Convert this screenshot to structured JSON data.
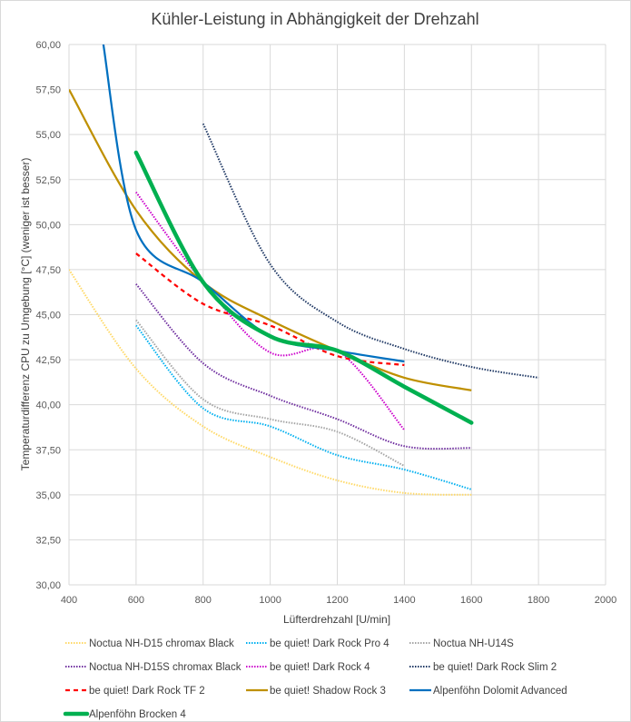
{
  "chart_data": {
    "type": "line",
    "title": "Kühler-Leistung in Abhängigkeit der Drehzahl",
    "xlabel": "Lüfterdrehzahl [U/min]",
    "ylabel": "Temperaturdifferenz CPU zu Umgebung [°C] (weniger ist besser)",
    "xlim": [
      400,
      2000
    ],
    "ylim": [
      30,
      60
    ],
    "x_ticks": [
      400,
      600,
      800,
      1000,
      1200,
      1400,
      1600,
      1800,
      2000
    ],
    "x_tick_labels": [
      "400",
      "600",
      "800",
      "1000",
      "1200",
      "1400",
      "1600",
      "1800",
      "2000"
    ],
    "y_ticks": [
      30,
      32.5,
      35,
      37.5,
      40,
      42.5,
      45,
      47.5,
      50,
      52.5,
      55,
      57.5,
      60
    ],
    "y_tick_labels": [
      "30,00",
      "32,50",
      "35,00",
      "37,50",
      "40,00",
      "42,50",
      "45,00",
      "47,50",
      "50,00",
      "52,50",
      "55,00",
      "57,50",
      "60,00"
    ],
    "grid": true,
    "legend_position": "bottom",
    "series": [
      {
        "name": "Noctua NH-D15 chromax Black",
        "color": "#ffd966",
        "style": "dotted",
        "x": [
          400,
          600,
          800,
          1000,
          1200,
          1400,
          1600
        ],
        "y": [
          47.5,
          42.0,
          38.8,
          37.1,
          35.8,
          35.1,
          35.0
        ]
      },
      {
        "name": "be quiet! Dark Rock Pro 4",
        "color": "#00b0f0",
        "style": "dotted",
        "x": [
          600,
          800,
          1000,
          1200,
          1400,
          1600
        ],
        "y": [
          44.4,
          39.8,
          38.8,
          37.2,
          36.4,
          35.3
        ]
      },
      {
        "name": "Noctua NH-U14S",
        "color": "#a5a5a5",
        "style": "dotted",
        "x": [
          600,
          800,
          1000,
          1200,
          1400
        ],
        "y": [
          44.7,
          40.3,
          39.2,
          38.5,
          36.6
        ]
      },
      {
        "name": "Noctua NH-D15S chromax Black",
        "color": "#7030a0",
        "style": "dotted",
        "x": [
          600,
          800,
          1000,
          1200,
          1400,
          1600
        ],
        "y": [
          46.7,
          42.3,
          40.5,
          39.2,
          37.7,
          37.6
        ]
      },
      {
        "name": "be quiet! Dark Rock 4",
        "color": "#cc00cc",
        "style": "dotted",
        "x": [
          600,
          800,
          1000,
          1200,
          1400
        ],
        "y": [
          51.8,
          46.8,
          42.9,
          43.0,
          38.6
        ]
      },
      {
        "name": "be quiet! Dark Rock Slim 2",
        "color": "#1f3864",
        "style": "dotted",
        "x": [
          800,
          1000,
          1200,
          1400,
          1600,
          1800
        ],
        "y": [
          55.6,
          47.8,
          44.6,
          43.1,
          42.1,
          41.5
        ]
      },
      {
        "name": "be quiet! Dark Rock TF 2",
        "color": "#ff0000",
        "style": "dashed",
        "x": [
          600,
          800,
          1000,
          1200,
          1400
        ],
        "y": [
          48.4,
          45.6,
          44.4,
          42.7,
          42.2
        ]
      },
      {
        "name": "be quiet! Shadow Rock 3",
        "color": "#bf9000",
        "style": "solid",
        "x": [
          400,
          600,
          800,
          1000,
          1200,
          1400,
          1600
        ],
        "y": [
          57.5,
          50.8,
          46.8,
          44.7,
          43.0,
          41.5,
          40.8
        ]
      },
      {
        "name": "Alpenföhn Dolomit Advanced",
        "color": "#0070c0",
        "style": "solid",
        "x": [
          500,
          600,
          800,
          1000,
          1200,
          1400
        ],
        "y": [
          60.3,
          49.7,
          46.8,
          43.8,
          43.0,
          42.4
        ]
      },
      {
        "name": "Alpenföhn Brocken 4",
        "color": "#00b050",
        "style": "thick",
        "x": [
          600,
          800,
          1000,
          1200,
          1400,
          1600
        ],
        "y": [
          54.0,
          46.8,
          43.8,
          43.0,
          41.0,
          39.0
        ]
      }
    ]
  }
}
